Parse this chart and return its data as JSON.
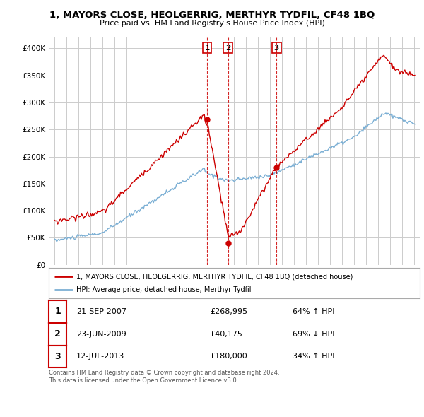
{
  "title_line1": "1, MAYORS CLOSE, HEOLGERRIG, MERTHYR TYDFIL, CF48 1BQ",
  "title_line2": "Price paid vs. HM Land Registry's House Price Index (HPI)",
  "background_color": "#ffffff",
  "plot_bg_color": "#ffffff",
  "grid_color": "#cccccc",
  "hpi_color": "#7bafd4",
  "price_color": "#cc0000",
  "sale_dates": [
    2007.73,
    2009.48,
    2013.53
  ],
  "sale_prices": [
    268995,
    40175,
    180000
  ],
  "sale_labels": [
    "1",
    "2",
    "3"
  ],
  "legend_line1": "1, MAYORS CLOSE, HEOLGERRIG, MERTHYR TYDFIL, CF48 1BQ (detached house)",
  "legend_line2": "HPI: Average price, detached house, Merthyr Tydfil",
  "table_data": [
    [
      "1",
      "21-SEP-2007",
      "£268,995",
      "64% ↑ HPI"
    ],
    [
      "2",
      "23-JUN-2009",
      "£40,175",
      "69% ↓ HPI"
    ],
    [
      "3",
      "12-JUL-2013",
      "£180,000",
      "34% ↑ HPI"
    ]
  ],
  "footer": "Contains HM Land Registry data © Crown copyright and database right 2024.\nThis data is licensed under the Open Government Licence v3.0.",
  "ylim": [
    0,
    420000
  ],
  "xlim_start": 1994.5,
  "xlim_end": 2025.5
}
